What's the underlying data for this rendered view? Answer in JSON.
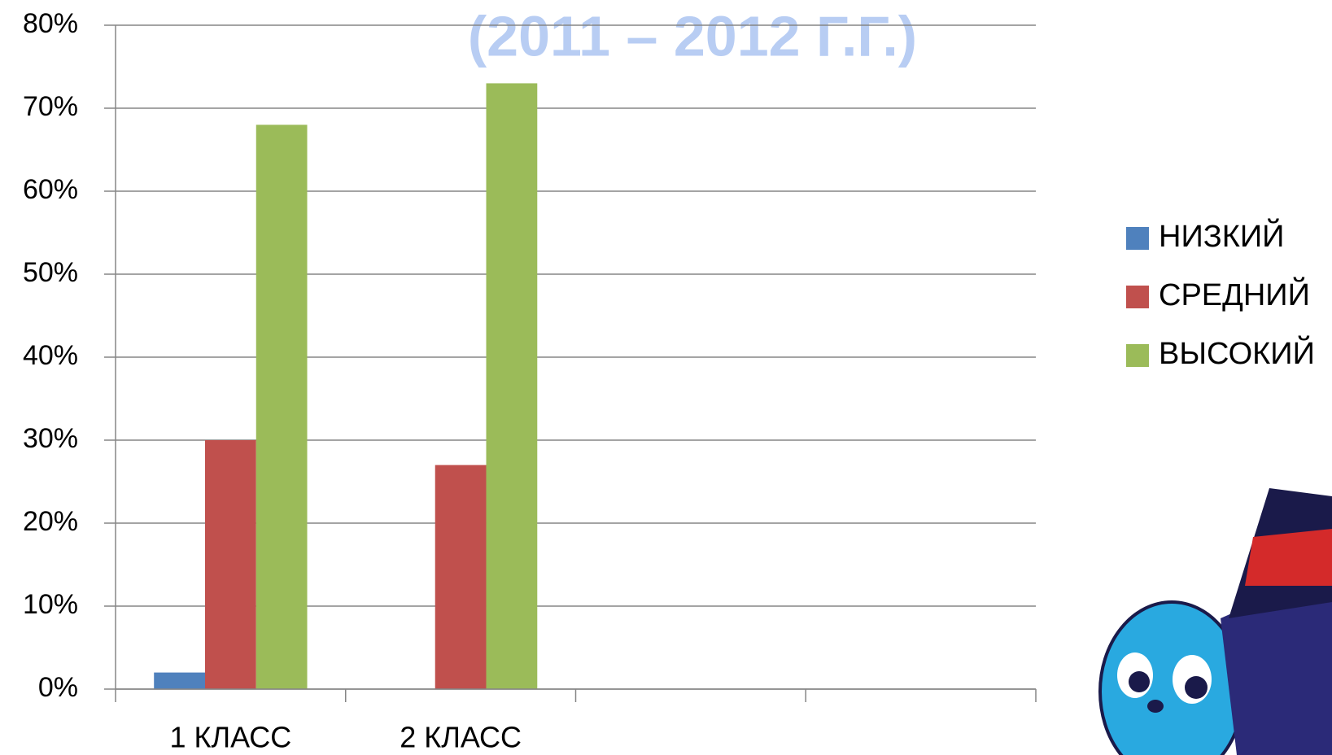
{
  "chart_data": {
    "type": "bar",
    "title": "(2011 – 2012 Г.Г.)",
    "categories": [
      "1 КЛАСС",
      "2 КЛАСС",
      null,
      null
    ],
    "series": [
      {
        "name": "НИЗКИЙ",
        "color": "#4f81bd",
        "values": [
          2,
          0,
          null,
          null
        ]
      },
      {
        "name": "СРЕДНИЙ",
        "color": "#c0504d",
        "values": [
          30,
          27,
          null,
          null
        ]
      },
      {
        "name": "ВЫСОКИЙ",
        "color": "#9bbb59",
        "values": [
          68,
          73,
          null,
          null
        ]
      }
    ],
    "ylim": [
      0,
      80
    ],
    "yticks": [
      {
        "value": 0,
        "label": "0%"
      },
      {
        "value": 10,
        "label": "10%"
      },
      {
        "value": 20,
        "label": "20%"
      },
      {
        "value": 30,
        "label": "30%"
      },
      {
        "value": 40,
        "label": "40%"
      },
      {
        "value": 50,
        "label": "50%"
      },
      {
        "value": 60,
        "label": "60%"
      },
      {
        "value": 70,
        "label": "70%"
      },
      {
        "value": 80,
        "label": "80%"
      }
    ],
    "grid": true,
    "legend": "right"
  }
}
